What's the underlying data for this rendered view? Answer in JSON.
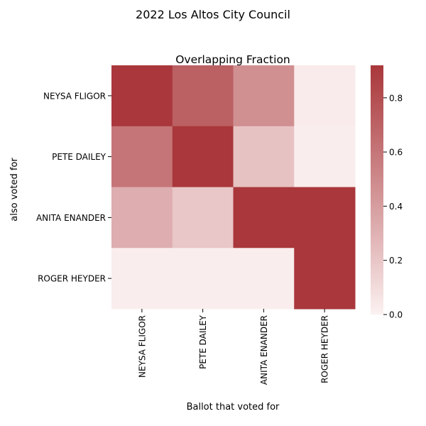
{
  "chart_data": {
    "type": "heatmap",
    "suptitle": "2022 Los Altos City Council",
    "title": "Overlapping Fraction",
    "xlabel": "Ballot that voted for",
    "ylabel": "also voted for",
    "x_categories": [
      "NEYSA FLIGOR",
      "PETE DAILEY",
      "ANITA ENANDER",
      "ROGER HEYDER"
    ],
    "y_categories": [
      "NEYSA FLIGOR",
      "PETE DAILEY",
      "ANITA ENANDER",
      "ROGER HEYDER"
    ],
    "values": [
      [
        0.92,
        0.71,
        0.47,
        0.03
      ],
      [
        0.6,
        0.92,
        0.22,
        0.02
      ],
      [
        0.32,
        0.2,
        0.92,
        0.92
      ],
      [
        0.02,
        0.02,
        0.02,
        0.92
      ]
    ],
    "colorbar": {
      "min": 0.0,
      "max": 0.92,
      "ticks": [
        "0.0",
        "0.2",
        "0.4",
        "0.6",
        "0.8"
      ],
      "tick_values": [
        0.0,
        0.2,
        0.4,
        0.6,
        0.8
      ]
    },
    "colors": {
      "low": "#fcf2f2",
      "mid": "#f2f2f2",
      "high": "#a9373b"
    }
  }
}
